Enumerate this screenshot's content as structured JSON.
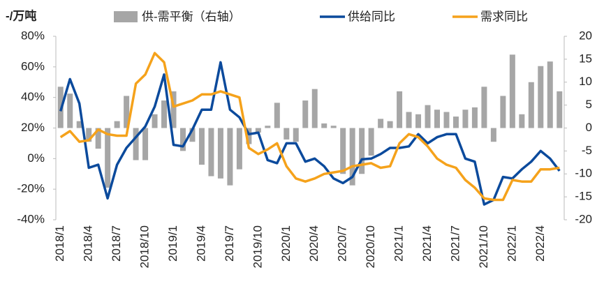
{
  "chart_data": {
    "type": "bar-line",
    "y_label": "-/万吨",
    "categories": [
      "2018/1",
      null,
      null,
      "2018/4",
      null,
      null,
      "2018/7",
      null,
      null,
      "2018/10",
      null,
      null,
      "2019/1",
      null,
      null,
      "2019/4",
      null,
      null,
      "2019/7",
      null,
      null,
      "2019/10",
      null,
      null,
      "2020/1",
      null,
      null,
      "2020/4",
      null,
      null,
      "2020/7",
      null,
      null,
      "2020/10",
      null,
      null,
      "2021/1",
      null,
      null,
      "2021/4",
      null,
      null,
      "2021/7",
      null,
      null,
      "2021/10",
      null,
      null,
      "2022/1",
      null,
      null,
      "2022/4",
      null,
      null
    ],
    "series": [
      {
        "name": "供-需平衡（右轴）",
        "type": "bar",
        "axis": "y2",
        "color": "#a6a6a6",
        "values": [
          9,
          7.5,
          1.5,
          -3,
          -4.5,
          -13,
          1.5,
          7,
          -7,
          -7,
          3,
          6,
          8,
          -5,
          -3,
          -8,
          -10.5,
          -11,
          -12.5,
          -9,
          -3.5,
          -1,
          0.5,
          5.5,
          -2.5,
          -3,
          6,
          8.5,
          1,
          0.5,
          -10,
          -12.5,
          -10,
          -6,
          2,
          1.5,
          8,
          3.5,
          3,
          5,
          4,
          3.5,
          2.5,
          4,
          4.5,
          9,
          -3,
          7,
          16,
          3,
          10,
          13.5,
          14.5,
          8
        ]
      },
      {
        "name": "供给同比",
        "type": "line",
        "color": "#0b4a9c",
        "values": [
          31,
          52,
          36,
          -6,
          -4,
          -26,
          -4,
          7,
          14,
          21,
          34,
          55,
          9,
          8,
          19,
          32,
          32,
          63,
          32,
          27,
          16,
          17,
          -1,
          -3,
          10,
          10,
          -2,
          0,
          -5,
          -13,
          -16,
          -12,
          -0.5,
          0,
          3,
          7,
          7,
          8,
          16,
          10,
          14,
          16,
          16,
          0,
          -2,
          -30,
          -27,
          -12,
          -13,
          -7,
          -2,
          5,
          0,
          -8
        ]
      },
      {
        "name": "需求同比",
        "type": "line",
        "color": "#f5a21b",
        "values": [
          14,
          18,
          11,
          12,
          19,
          16,
          15,
          15,
          49,
          55,
          69,
          63,
          34,
          36,
          38,
          42,
          42,
          44,
          42,
          40,
          7,
          3,
          6,
          10,
          -5,
          -13,
          -15,
          -13,
          -10,
          -9,
          -8,
          -5,
          -4,
          -3,
          -6,
          -5,
          10,
          16,
          14,
          8,
          0,
          -4,
          -6,
          -14,
          -19,
          -26,
          -27,
          -27,
          -14,
          -15,
          -15,
          -7,
          -7,
          -6
        ]
      }
    ],
    "ylim": [
      -40,
      80
    ],
    "yticks": [
      {
        "value": -40,
        "label": "-40%"
      },
      {
        "value": -20,
        "label": "-20%"
      },
      {
        "value": 0,
        "label": "0%"
      },
      {
        "value": 20,
        "label": "20%"
      },
      {
        "value": 40,
        "label": "40%"
      },
      {
        "value": 60,
        "label": "60%"
      },
      {
        "value": 80,
        "label": "80%"
      }
    ],
    "y2lim": [
      -20,
      20
    ],
    "y2ticks": [
      -20,
      -15,
      -10,
      -5,
      0,
      5,
      10,
      15,
      20
    ]
  }
}
